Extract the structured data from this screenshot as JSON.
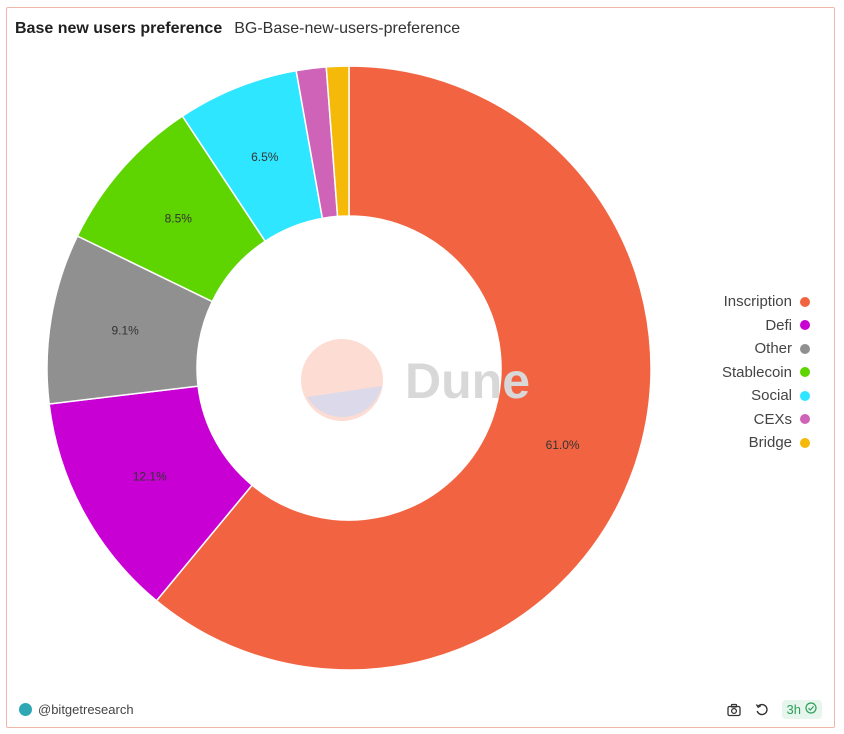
{
  "header": {
    "title": "Base new users preference",
    "subtitle": "BG-Base-new-users-preference"
  },
  "chart_data": {
    "type": "pie",
    "donut": true,
    "categories": [
      "Inscription",
      "Defi",
      "Other",
      "Stablecoin",
      "Social",
      "CEXs",
      "Bridge"
    ],
    "values": [
      61.0,
      12.1,
      9.1,
      8.5,
      6.5,
      1.6,
      1.2
    ],
    "data_labels": [
      "61.0%",
      "12.1%",
      "9.1%",
      "8.5%",
      "6.5%",
      "",
      ""
    ],
    "colors": [
      "#f26441",
      "#c800d4",
      "#909090",
      "#5ed400",
      "#2ee6ff",
      "#cf63b8",
      "#f5b90a"
    ],
    "legend_position": "right"
  },
  "watermark": {
    "text": "Dune"
  },
  "footer": {
    "author": "@bitgetresearch",
    "refresh_badge": "3h",
    "screenshot_icon": "camera-icon",
    "refresh_icon": "refresh-icon",
    "status_icon": "check-circle-icon"
  }
}
